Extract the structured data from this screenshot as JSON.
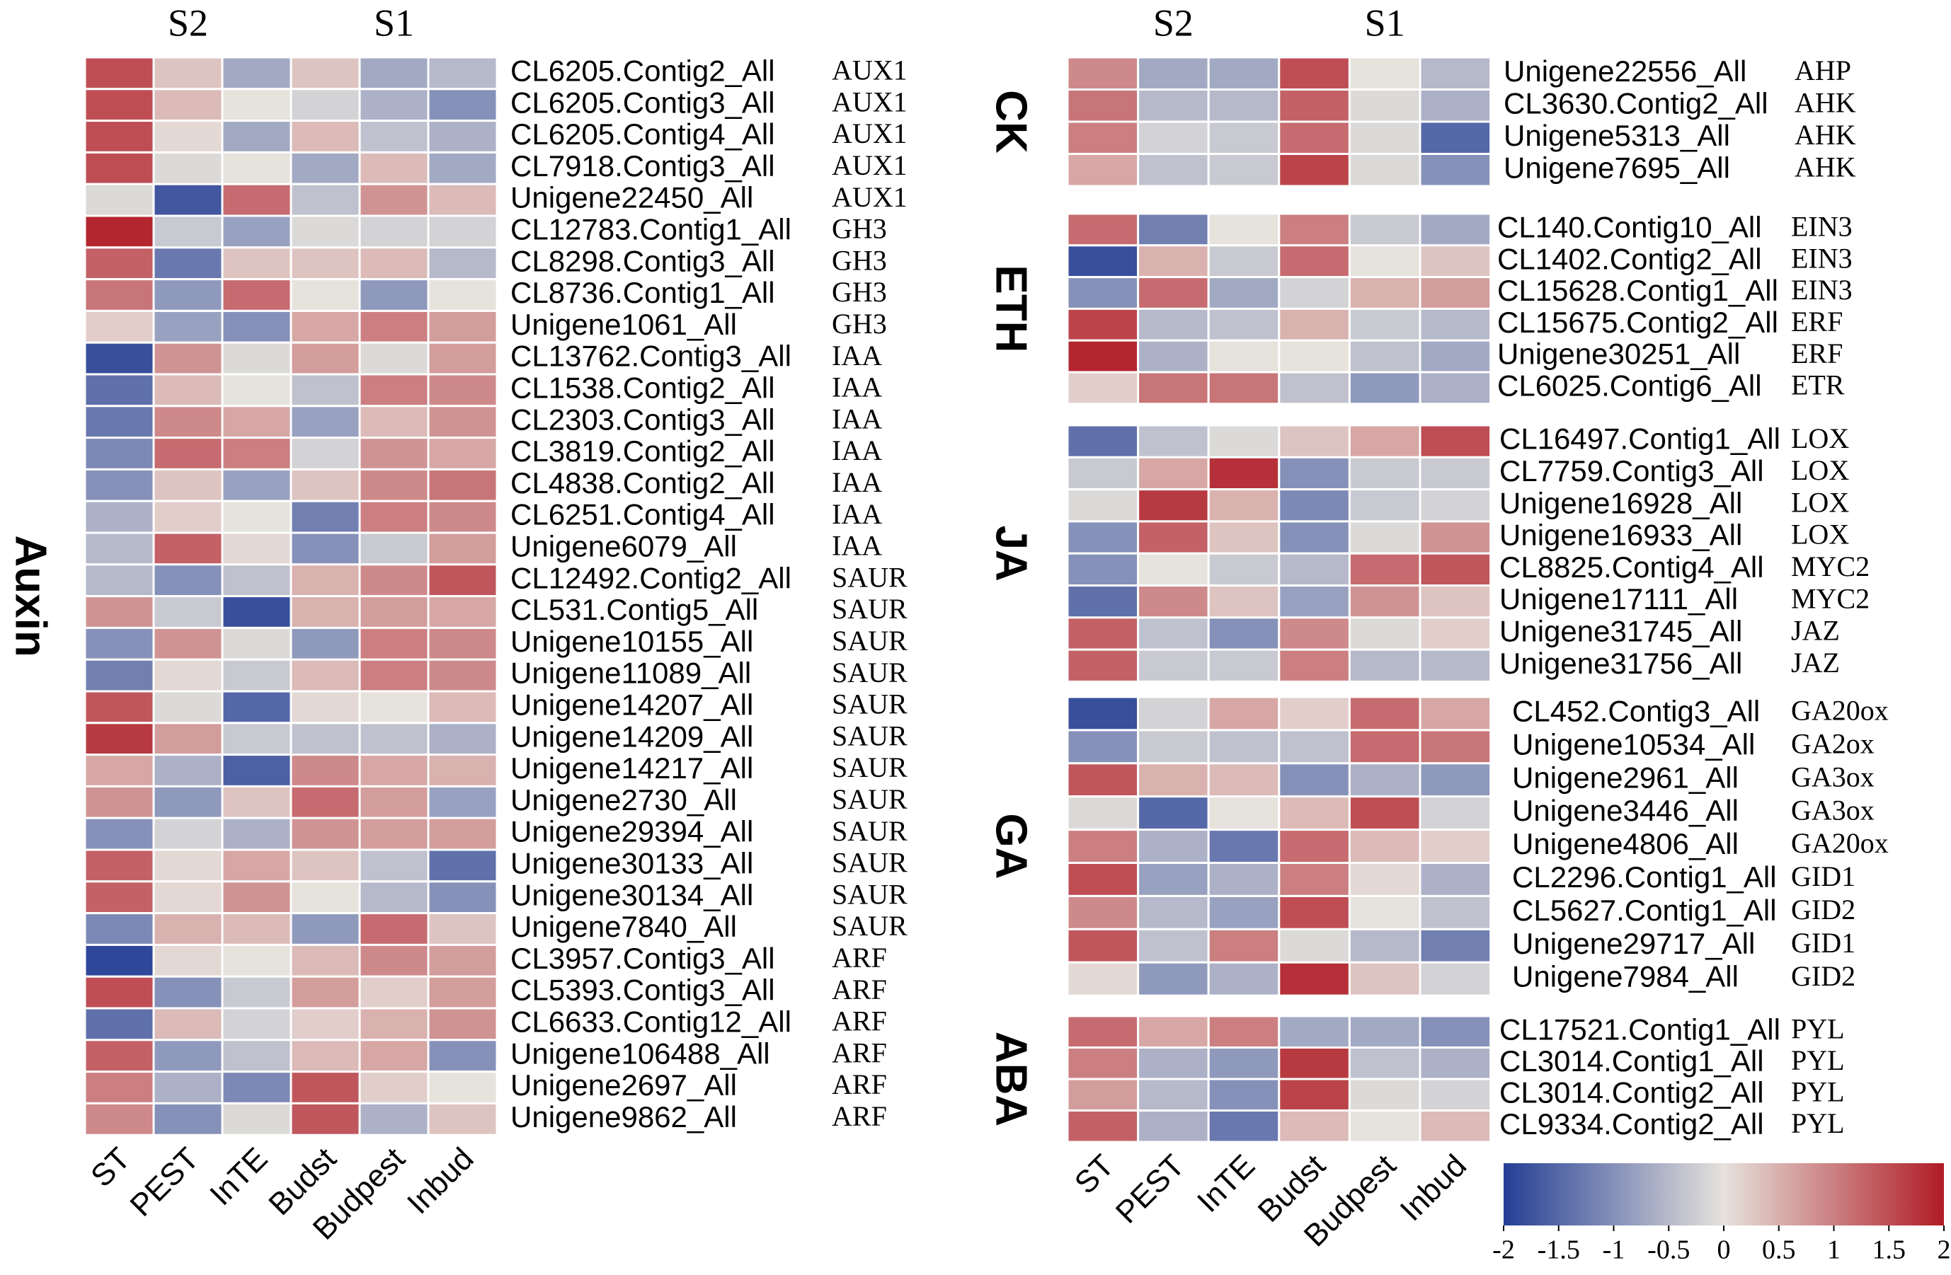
{
  "chart_data": [
    {
      "type": "heatmap",
      "title": "Auxin",
      "header": [
        "S2",
        "S1"
      ],
      "categories": [
        "ST",
        "PEST",
        "InTE",
        "Budst",
        "Budpest",
        "Inbud"
      ],
      "rows": [
        "CL6205.Contig2_All",
        "CL6205.Contig3_All",
        "CL6205.Contig4_All",
        "CL7918.Contig3_All",
        "Unigene22450_All",
        "CL12783.Contig1_All",
        "CL8298.Contig3_All",
        "CL8736.Contig1_All",
        "Unigene1061_All",
        "CL13762.Contig3_All",
        "CL1538.Contig2_All",
        "CL2303.Contig3_All",
        "CL3819.Contig2_All",
        "CL4838.Contig2_All",
        "CL6251.Contig4_All",
        "Unigene6079_All",
        "CL12492.Contig2_All",
        "CL531.Contig5_All",
        "Unigene10155_All",
        "Unigene11089_All",
        "Unigene14207_All",
        "Unigene14209_All",
        "Unigene14217_All",
        "Unigene2730_All",
        "Unigene29394_All",
        "Unigene30133_All",
        "Unigene30134_All",
        "Unigene7840_All",
        "CL3957.Contig3_All",
        "CL5393.Contig3_All",
        "CL6633.Contig12_All",
        "Unigene106488_All",
        "Unigene2697_All",
        "Unigene9862_All"
      ],
      "genes": [
        "AUX1",
        "AUX1",
        "AUX1",
        "AUX1",
        "AUX1",
        "GH3",
        "GH3",
        "GH3",
        "GH3",
        "IAA",
        "IAA",
        "IAA",
        "IAA",
        "IAA",
        "IAA",
        "IAA",
        "SAUR",
        "SAUR",
        "SAUR",
        "SAUR",
        "SAUR",
        "SAUR",
        "SAUR",
        "SAUR",
        "SAUR",
        "SAUR",
        "SAUR",
        "SAUR",
        "ARF",
        "ARF",
        "ARF",
        "ARF",
        "ARF",
        "ARF"
      ],
      "values": [
        [
          1.5,
          0.3,
          -0.7,
          0.3,
          -0.7,
          -0.5
        ],
        [
          1.5,
          0.4,
          0,
          -0.2,
          -0.6,
          -1.0
        ],
        [
          1.5,
          0.1,
          -0.7,
          0.4,
          -0.4,
          -0.6
        ],
        [
          1.5,
          -0.1,
          0,
          -0.7,
          0.4,
          -0.7
        ],
        [
          -0.1,
          -1.7,
          1.2,
          -0.4,
          0.8,
          0.4
        ],
        [
          1.9,
          -0.3,
          -0.8,
          -0.1,
          -0.2,
          -0.2
        ],
        [
          1.3,
          -1.3,
          0.3,
          0.3,
          0.4,
          -0.5
        ],
        [
          1.1,
          -0.9,
          1.2,
          0,
          -0.9,
          0
        ],
        [
          0.2,
          -0.8,
          -1.0,
          0.6,
          1.0,
          0.7
        ],
        [
          -1.8,
          0.8,
          -0.1,
          0.7,
          -0.1,
          0.7
        ],
        [
          -1.4,
          0.4,
          0,
          -0.4,
          1.0,
          0.9
        ],
        [
          -1.3,
          0.9,
          0.6,
          -0.8,
          0.4,
          0.8
        ],
        [
          -1.1,
          1.2,
          1.0,
          -0.2,
          0.8,
          0.6
        ],
        [
          -1.0,
          0.3,
          -0.8,
          0.3,
          0.9,
          1.1
        ],
        [
          -0.6,
          0.2,
          0,
          -1.2,
          1.0,
          0.9
        ],
        [
          -0.5,
          1.3,
          0.1,
          -1.0,
          -0.3,
          0.7
        ],
        [
          -0.5,
          -1.0,
          -0.4,
          0.5,
          0.9,
          1.4
        ],
        [
          0.8,
          -0.3,
          -1.8,
          0.5,
          0.7,
          0.6
        ],
        [
          -1.0,
          0.8,
          -0.1,
          -0.9,
          1.0,
          0.9
        ],
        [
          -1.2,
          0.1,
          -0.3,
          0.4,
          1.0,
          0.9
        ],
        [
          1.4,
          -0.1,
          -1.5,
          0.1,
          0,
          0.4
        ],
        [
          1.7,
          0.7,
          -0.3,
          -0.4,
          -0.4,
          -0.6
        ],
        [
          0.6,
          -0.6,
          -1.6,
          0.9,
          0.6,
          0.5
        ],
        [
          0.8,
          -0.9,
          0.3,
          1.2,
          0.7,
          -0.8
        ],
        [
          -1.0,
          -0.2,
          -0.6,
          0.8,
          0.7,
          0.7
        ],
        [
          1.3,
          0.1,
          0.6,
          0.3,
          -0.4,
          -1.4
        ],
        [
          1.3,
          0.1,
          0.8,
          0,
          -0.5,
          -1.0
        ],
        [
          -1.1,
          0.5,
          0.4,
          -0.9,
          1.2,
          0.3
        ],
        [
          -1.9,
          0.1,
          0,
          0.4,
          0.9,
          0.7
        ],
        [
          1.5,
          -1.0,
          -0.3,
          0.7,
          0.2,
          0.7
        ],
        [
          -1.4,
          0.4,
          -0.2,
          0.2,
          0.5,
          0.8
        ],
        [
          1.3,
          -0.9,
          -0.4,
          0.4,
          0.6,
          -1.0
        ],
        [
          1.0,
          -0.6,
          -1.1,
          1.4,
          0.2,
          0
        ],
        [
          0.9,
          -1.0,
          -0.1,
          1.4,
          -0.6,
          0.3
        ]
      ]
    },
    {
      "type": "heatmap",
      "title": "CK",
      "header": [
        "S2",
        "S1"
      ],
      "rows": [
        "Unigene22556_All",
        "CL3630.Contig2_All",
        "Unigene5313_All",
        "Unigene7695_All"
      ],
      "genes": [
        "AHP",
        "AHK",
        "AHK",
        "AHK"
      ],
      "values": [
        [
          0.9,
          -0.7,
          -0.7,
          1.5,
          0,
          -0.5
        ],
        [
          1.1,
          -0.5,
          -0.5,
          1.3,
          -0.1,
          -0.6
        ],
        [
          1.0,
          -0.2,
          -0.3,
          1.2,
          -0.1,
          -1.5
        ],
        [
          0.6,
          -0.4,
          -0.3,
          1.6,
          -0.1,
          -1.0
        ]
      ]
    },
    {
      "type": "heatmap",
      "title": "ETH",
      "rows": [
        "CL140.Contig10_All",
        "CL1402.Contig2_All",
        "CL15628.Contig1_All",
        "CL15675.Contig2_All",
        "Unigene30251_All",
        "CL6025.Contig6_All"
      ],
      "genes": [
        "EIN3",
        "EIN3",
        "EIN3",
        "ERF",
        "ERF",
        "ETR"
      ],
      "values": [
        [
          1.2,
          -1.2,
          0,
          1.0,
          -0.3,
          -0.7
        ],
        [
          -1.8,
          0.5,
          -0.3,
          1.2,
          0,
          0.3
        ],
        [
          -1.0,
          1.2,
          -0.7,
          -0.2,
          0.5,
          0.7
        ],
        [
          1.6,
          -0.5,
          -0.4,
          0.5,
          -0.3,
          -0.5
        ],
        [
          1.9,
          -0.6,
          0,
          0,
          -0.4,
          -0.7
        ],
        [
          0.2,
          1.1,
          1.1,
          -0.4,
          -0.9,
          -0.6
        ]
      ]
    },
    {
      "type": "heatmap",
      "title": "JA",
      "rows": [
        "CL16497.Contig1_All",
        "CL7759.Contig3_All",
        "Unigene16928_All",
        "Unigene16933_All",
        "CL8825.Contig4_All",
        "Unigene17111_All",
        "Unigene31745_All",
        "Unigene31756_All"
      ],
      "genes": [
        "LOX",
        "LOX",
        "LOX",
        "LOX",
        "MYC2",
        "MYC2",
        "JAZ",
        "JAZ"
      ],
      "values": [
        [
          -1.4,
          -0.4,
          -0.1,
          0.3,
          0.6,
          1.5
        ],
        [
          -0.3,
          0.6,
          1.8,
          -1.0,
          -0.3,
          -0.3
        ],
        [
          -0.1,
          1.7,
          0.5,
          -1.1,
          -0.3,
          -0.2
        ],
        [
          -1.0,
          1.3,
          0.3,
          -1.0,
          -0.1,
          0.8
        ],
        [
          -1.0,
          0,
          -0.3,
          -0.5,
          1.2,
          1.4
        ],
        [
          -1.4,
          0.9,
          0.3,
          -0.8,
          0.8,
          0.3
        ],
        [
          1.3,
          -0.4,
          -1.0,
          0.9,
          -0.1,
          0.2
        ],
        [
          1.3,
          -0.3,
          -0.3,
          1.0,
          -0.5,
          -0.5
        ]
      ]
    },
    {
      "type": "heatmap",
      "title": "GA",
      "rows": [
        "CL452.Contig3_All",
        "Unigene10534_All",
        "Unigene2961_All",
        "Unigene3446_All",
        "Unigene4806_All",
        "CL2296.Contig1_All",
        "CL5627.Contig1_All",
        "Unigene29717_All",
        "Unigene7984_All"
      ],
      "genes": [
        "GA20ox",
        "GA2ox",
        "GA3ox",
        "GA3ox",
        "GA20ox",
        "GID1",
        "GID2",
        "GID1",
        "GID2"
      ],
      "values": [
        [
          -1.8,
          -0.2,
          0.6,
          0.2,
          1.2,
          0.6
        ],
        [
          -1.0,
          -0.3,
          -0.4,
          -0.4,
          1.2,
          1.1
        ],
        [
          1.4,
          0.5,
          0.4,
          -1.0,
          -0.6,
          -0.9
        ],
        [
          -0.1,
          -1.5,
          0,
          0.4,
          1.5,
          -0.2
        ],
        [
          1.0,
          -0.6,
          -1.3,
          1.2,
          0.4,
          0.2
        ],
        [
          1.5,
          -0.8,
          -0.6,
          1.0,
          0.1,
          -0.6
        ],
        [
          0.9,
          -0.5,
          -0.8,
          1.5,
          0,
          -0.4
        ],
        [
          1.4,
          -0.4,
          1.0,
          -0.1,
          -0.5,
          -1.2
        ],
        [
          0.1,
          -0.9,
          -0.6,
          1.8,
          0.3,
          -0.2
        ]
      ]
    },
    {
      "type": "heatmap",
      "title": "ABA",
      "categories": [
        "ST",
        "PEST",
        "InTE",
        "Budst",
        "Budpest",
        "Inbud"
      ],
      "rows": [
        "CL17521.Contig1_All",
        "CL3014.Contig1_All",
        "CL3014.Contig2_All",
        "CL9334.Contig2_All"
      ],
      "genes": [
        "PYL",
        "PYL",
        "PYL",
        "PYL"
      ],
      "values": [
        [
          1.2,
          0.6,
          1.0,
          -0.7,
          -0.7,
          -1.0
        ],
        [
          1.0,
          -0.6,
          -0.9,
          1.7,
          -0.4,
          -0.6
        ],
        [
          0.7,
          -0.5,
          -1.0,
          1.6,
          -0.1,
          -0.2
        ],
        [
          1.3,
          -0.6,
          -1.3,
          0.4,
          0,
          0.4
        ]
      ]
    }
  ],
  "colorbar": {
    "lim": [
      -2,
      2
    ],
    "ticks": [
      -2,
      -1.5,
      -1,
      -0.5,
      0,
      0.5,
      1,
      1.5,
      2
    ],
    "colors": [
      "#253f95",
      "#e6e2dc",
      "#b01c26"
    ]
  }
}
